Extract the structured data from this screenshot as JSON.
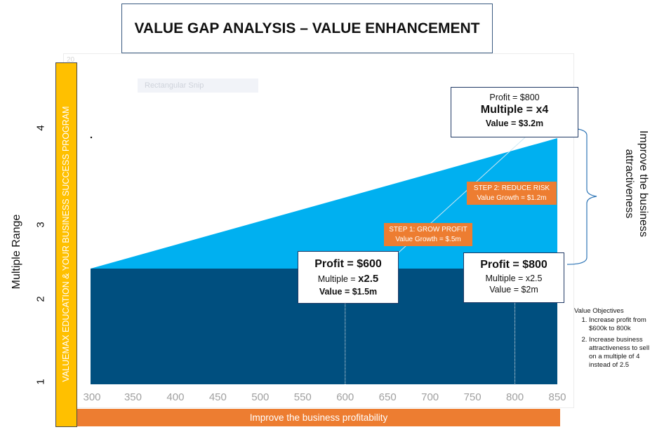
{
  "title": "VALUE GAP ANALYSIS – VALUE ENHANCEMENT",
  "y_axis_title": "Multiple Range",
  "y_band_text": "VALUEMAX EDUCATION & YOUR BUSINESS SUCCESS PROGRAM",
  "x_band_text": "Improve the business profitability",
  "ghost_label": "Rectangular Snip",
  "ghost_top": "20",
  "right_brace_label": "Improve the business attractiveness",
  "boxes": {
    "current": {
      "profit": "Profit = $600",
      "multiple_prefix": "Multiple = ",
      "multiple_value": "x2.5",
      "value": "Value = $1.5m"
    },
    "mid": {
      "profit": "Profit = $800",
      "multiple": "Multiple = x2.5",
      "value": "Value = $2m"
    },
    "target": {
      "profit": "Profit = $800",
      "multiple": "Multiple = x4",
      "value": "Value = $3.2m"
    }
  },
  "steps": {
    "step1": {
      "title": "STEP 1: GROW PROFIT",
      "growth": "Value Growth = $.5m"
    },
    "step2": {
      "title": "STEP 2: REDUCE RISK",
      "growth": "Value Growth = $1.2m"
    }
  },
  "objectives": {
    "heading": "Value Objectives",
    "items": [
      "Increase profit from $600k to 800k",
      "Increase business attractiveness to sell on a multiple of 4 instead of 2.5"
    ]
  },
  "colors": {
    "dark_area": "#004f7f",
    "light_area": "#00b0f0",
    "yellow_band": "#ffc000",
    "orange": "#ed7d31",
    "box_border": "#1f3864"
  },
  "chart_data": {
    "type": "area",
    "x": [
      300,
      850
    ],
    "series": [
      {
        "values": [
          2.5,
          2.5
        ]
      },
      {
        "values": [
          2.5,
          4.1
        ]
      }
    ],
    "x_ticks": [
      300,
      350,
      400,
      450,
      500,
      550,
      600,
      650,
      700,
      750,
      800,
      850
    ],
    "y_ticks": [
      1,
      2,
      3,
      4
    ],
    "xlim": [
      300,
      850
    ],
    "ylim": [
      1,
      4.5
    ],
    "markers_x": [
      600,
      800
    ]
  }
}
